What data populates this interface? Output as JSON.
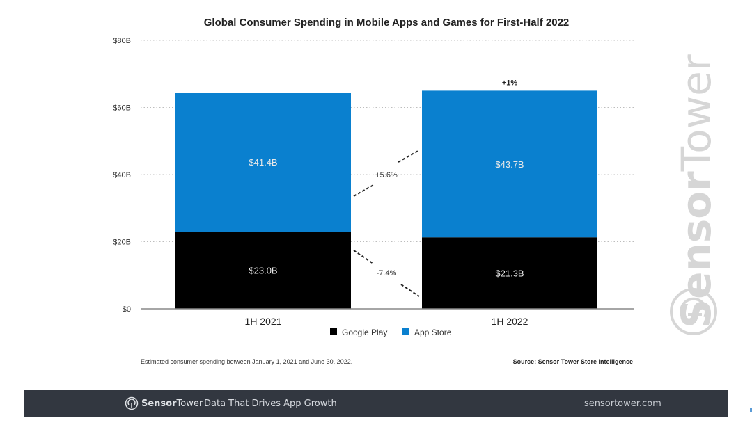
{
  "chart_data": {
    "type": "bar",
    "stacked": true,
    "title": "Global Consumer Spending in Mobile Apps and Games for First-Half 2022",
    "xlabel": "",
    "ylabel": "",
    "ylim": [
      0,
      80
    ],
    "yticks": [
      0,
      20,
      40,
      60,
      80
    ],
    "ytick_labels": [
      "$0",
      "$20B",
      "$40B",
      "$60B",
      "$80B"
    ],
    "grid": true,
    "categories": [
      "1H 2021",
      "1H 2022"
    ],
    "series": [
      {
        "name": "Google Play",
        "color": "#000000",
        "values": [
          23.0,
          21.3
        ],
        "labels": [
          "$23.0B",
          "$21.3B"
        ]
      },
      {
        "name": "App Store",
        "color": "#0a80cf",
        "values": [
          41.4,
          43.7
        ],
        "labels": [
          "$41.4B",
          "$43.7B"
        ]
      }
    ],
    "annotations": {
      "total_change": "+1%",
      "app_store_change": "+5.6%",
      "google_play_change": "-7.4%"
    },
    "legend": {
      "placement": "bottom-center",
      "entries": [
        "Google Play",
        "App Store"
      ]
    },
    "footnote": "Estimated consumer spending between January 1, 2021 and June 30, 2022.",
    "source": "Source: Sensor Tower Store Intelligence"
  },
  "watermark": {
    "text": "SensorTower",
    "bold_part": "Sensor",
    "light_part": "Tower",
    "icon": "sensortower-logo-icon"
  },
  "footer": {
    "brand_bold": "Sensor",
    "brand_light": "Tower",
    "tagline": "Data That Drives App Growth",
    "url": "sensortower.com",
    "background": "#323740"
  }
}
